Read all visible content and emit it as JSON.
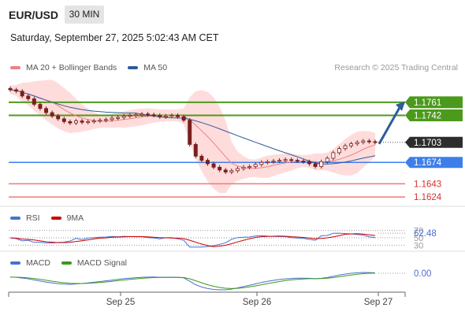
{
  "header": {
    "symbol": "EUR/USD",
    "timeframe": "30 MIN",
    "datetime": "Saturday, September 27, 2025 5:02:43 AM CET"
  },
  "legend_main": [
    {
      "label": "MA 20 + Bollinger Bands",
      "color": "#f08080"
    },
    {
      "label": "MA 50",
      "color": "#2f5c9a"
    }
  ],
  "credit": "Research © 2025 Trading Central",
  "legend_rsi": [
    {
      "label": "RSI",
      "color": "#4a6fd0"
    },
    {
      "label": "9MA",
      "color": "#cc0000"
    }
  ],
  "legend_macd": [
    {
      "label": "MACD",
      "color": "#4a6fd0"
    },
    {
      "label": "MACD Signal",
      "color": "#3a9a1a"
    }
  ],
  "colors": {
    "resistance": "#4c9a1c",
    "current": "#2d2d2d",
    "pivot": "#3d7eea",
    "support": "#f07878",
    "candle": "#7a1f1f",
    "band": "#ffd8d8",
    "arrow": "#2f5c9a"
  },
  "chart_data": [
    {
      "type": "candlestick",
      "title": "EUR/USD",
      "xlabels": [
        "Sep 25",
        "Sep 26",
        "Sep 27"
      ],
      "ylim": [
        1.1615,
        1.1795
      ],
      "levels": [
        {
          "value": 1.1761,
          "label": "1.1761",
          "kind": "resistance"
        },
        {
          "value": 1.1742,
          "label": "1.1742",
          "kind": "resistance"
        },
        {
          "value": 1.1703,
          "label": "1.1703",
          "kind": "current"
        },
        {
          "value": 1.1674,
          "label": "1.1674",
          "kind": "pivot"
        },
        {
          "value": 1.1643,
          "label": "1.1643",
          "kind": "support"
        },
        {
          "value": 1.1624,
          "label": "1.1624",
          "kind": "support"
        }
      ],
      "closes": [
        1.1779,
        1.1777,
        1.177,
        1.1766,
        1.1758,
        1.1752,
        1.1746,
        1.1741,
        1.1737,
        1.1733,
        1.1731,
        1.1734,
        1.1732,
        1.1733,
        1.1734,
        1.1735,
        1.1736,
        1.1738,
        1.1739,
        1.1741,
        1.1742,
        1.1743,
        1.1744,
        1.1743,
        1.1742,
        1.174,
        1.1741,
        1.1742,
        1.174,
        1.1735,
        1.17,
        1.1683,
        1.1677,
        1.1672,
        1.1667,
        1.1663,
        1.166,
        1.1662,
        1.1665,
        1.1667,
        1.1668,
        1.1671,
        1.1674,
        1.1675,
        1.1676,
        1.1677,
        1.1678,
        1.1677,
        1.1676,
        1.1675,
        1.1672,
        1.1668,
        1.1675,
        1.168,
        1.1688,
        1.1694,
        1.1698,
        1.1701,
        1.1703,
        1.1705,
        1.1704,
        1.1703
      ],
      "arrow": {
        "from": 1.1703,
        "to": 1.1761
      }
    },
    {
      "type": "line",
      "title": "RSI",
      "series": [
        {
          "name": "RSI"
        },
        {
          "name": "9MA"
        }
      ],
      "value_label": "62.48",
      "levels": [
        70,
        50,
        30
      ],
      "ylim": [
        20,
        80
      ]
    },
    {
      "type": "line",
      "title": "MACD",
      "series": [
        {
          "name": "MACD"
        },
        {
          "name": "MACD Signal"
        }
      ],
      "value_label": "0.00"
    }
  ]
}
